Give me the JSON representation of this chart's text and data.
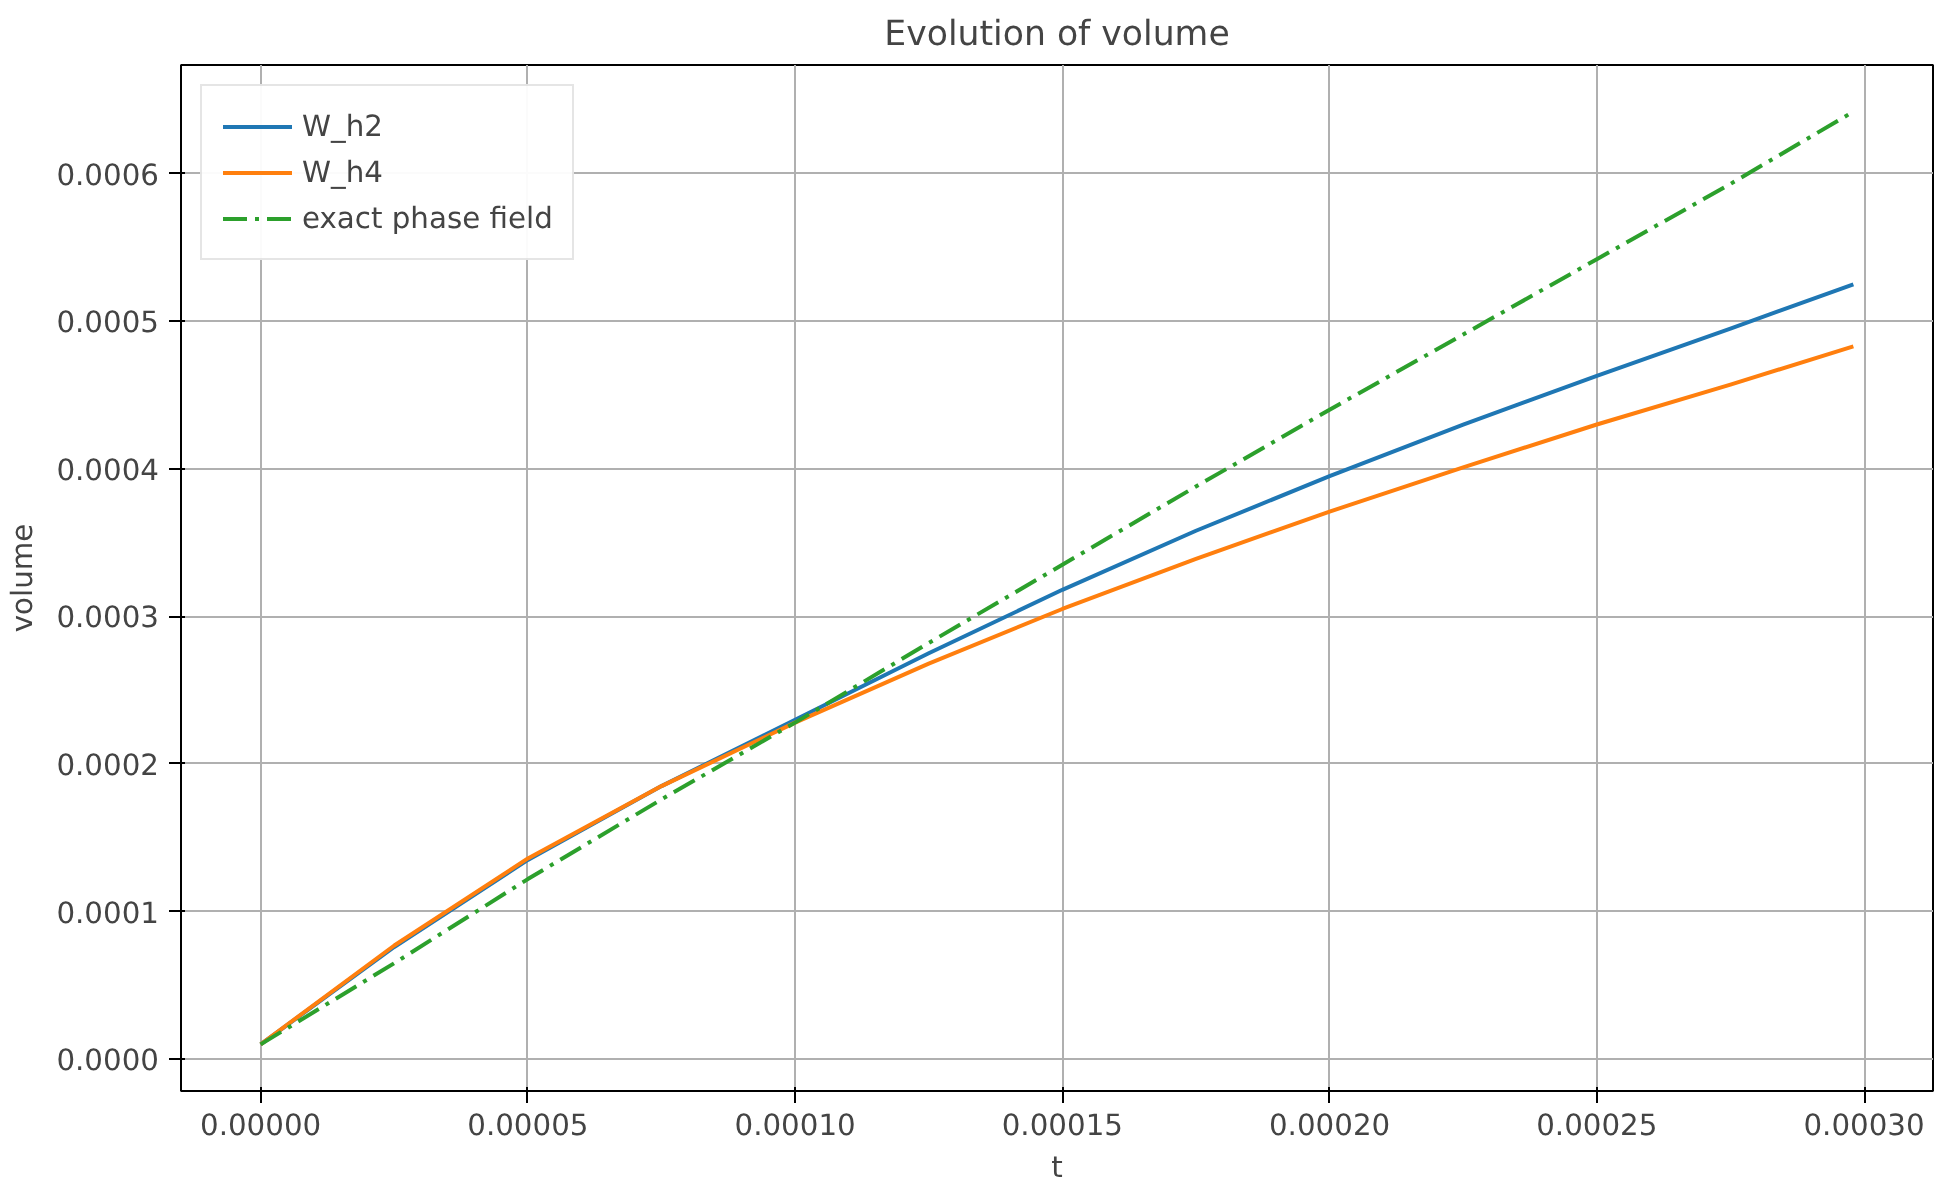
{
  "chart_data": {
    "type": "line",
    "title": "Evolution of volume",
    "xlabel": "t",
    "ylabel": "volume",
    "xlim": [
      -1.49e-05,
      0.0003129
    ],
    "ylim": [
      -2.16e-05,
      0.0006736
    ],
    "xticks": [
      {
        "value": 0,
        "label": "0.00000"
      },
      {
        "value": 5e-05,
        "label": "0.00005"
      },
      {
        "value": 0.0001,
        "label": "0.00010"
      },
      {
        "value": 0.00015,
        "label": "0.00015"
      },
      {
        "value": 0.0002,
        "label": "0.00020"
      },
      {
        "value": 0.00025,
        "label": "0.00025"
      },
      {
        "value": 0.0003,
        "label": "0.00030"
      }
    ],
    "yticks": [
      {
        "value": 0,
        "label": "0.0000"
      },
      {
        "value": 0.0001,
        "label": "0.0001"
      },
      {
        "value": 0.0002,
        "label": "0.0002"
      },
      {
        "value": 0.0003,
        "label": "0.0003"
      },
      {
        "value": 0.0004,
        "label": "0.0004"
      },
      {
        "value": 0.0005,
        "label": "0.0005"
      },
      {
        "value": 0.0006,
        "label": "0.0006"
      }
    ],
    "grid": true,
    "legend": "top left",
    "x": [
      0,
      2.5e-05,
      5e-05,
      7.5e-05,
      0.0001,
      0.000125,
      0.00015,
      0.000175,
      0.0002,
      0.000225,
      0.00025,
      0.000275,
      0.000298
    ],
    "series": [
      {
        "name": "W_h2",
        "color": "#1f77b4",
        "line_style": "solid",
        "values": [
          1e-05,
          7.6e-05,
          0.000135,
          0.000185,
          0.00023,
          0.000275,
          0.000318,
          0.000358,
          0.000395,
          0.00043,
          0.000463,
          0.000495,
          0.000525
        ]
      },
      {
        "name": "W_h4",
        "color": "#ff7f0e",
        "line_style": "solid",
        "values": [
          1e-05,
          7.7e-05,
          0.000136,
          0.000185,
          0.000228,
          0.000268,
          0.000305,
          0.000339,
          0.000371,
          0.000401,
          0.00043,
          0.000457,
          0.000483
        ]
      },
      {
        "name": "exact phase field",
        "color": "#2ca02c",
        "line_style": "dashdot",
        "values": [
          1e-05,
          6.5e-05,
          0.000122,
          0.000176,
          0.000228,
          0.000282,
          0.000335,
          0.000388,
          0.00044,
          0.000491,
          0.000542,
          0.000593,
          0.000642
        ]
      }
    ]
  }
}
